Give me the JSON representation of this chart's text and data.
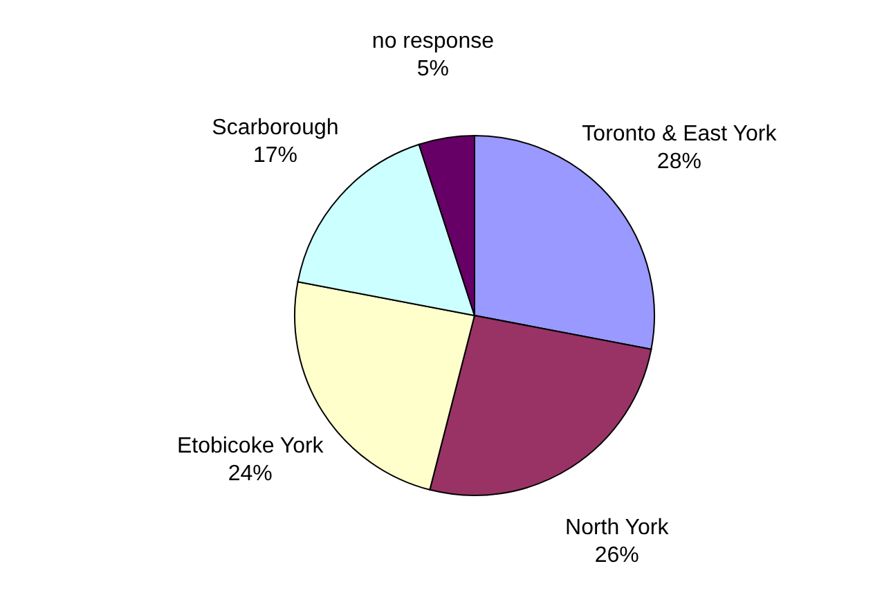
{
  "chart_data": {
    "type": "pie",
    "categories": [
      "Toronto & East York",
      "North York",
      "Etobicoke York",
      "Scarborough",
      "no response"
    ],
    "values": [
      28,
      26,
      24,
      17,
      5
    ],
    "value_labels": [
      "28%",
      "26%",
      "24%",
      "17%",
      "5%"
    ],
    "colors": [
      "#9999ff",
      "#993366",
      "#ffffcc",
      "#ccffff",
      "#660066"
    ],
    "legend": false
  }
}
